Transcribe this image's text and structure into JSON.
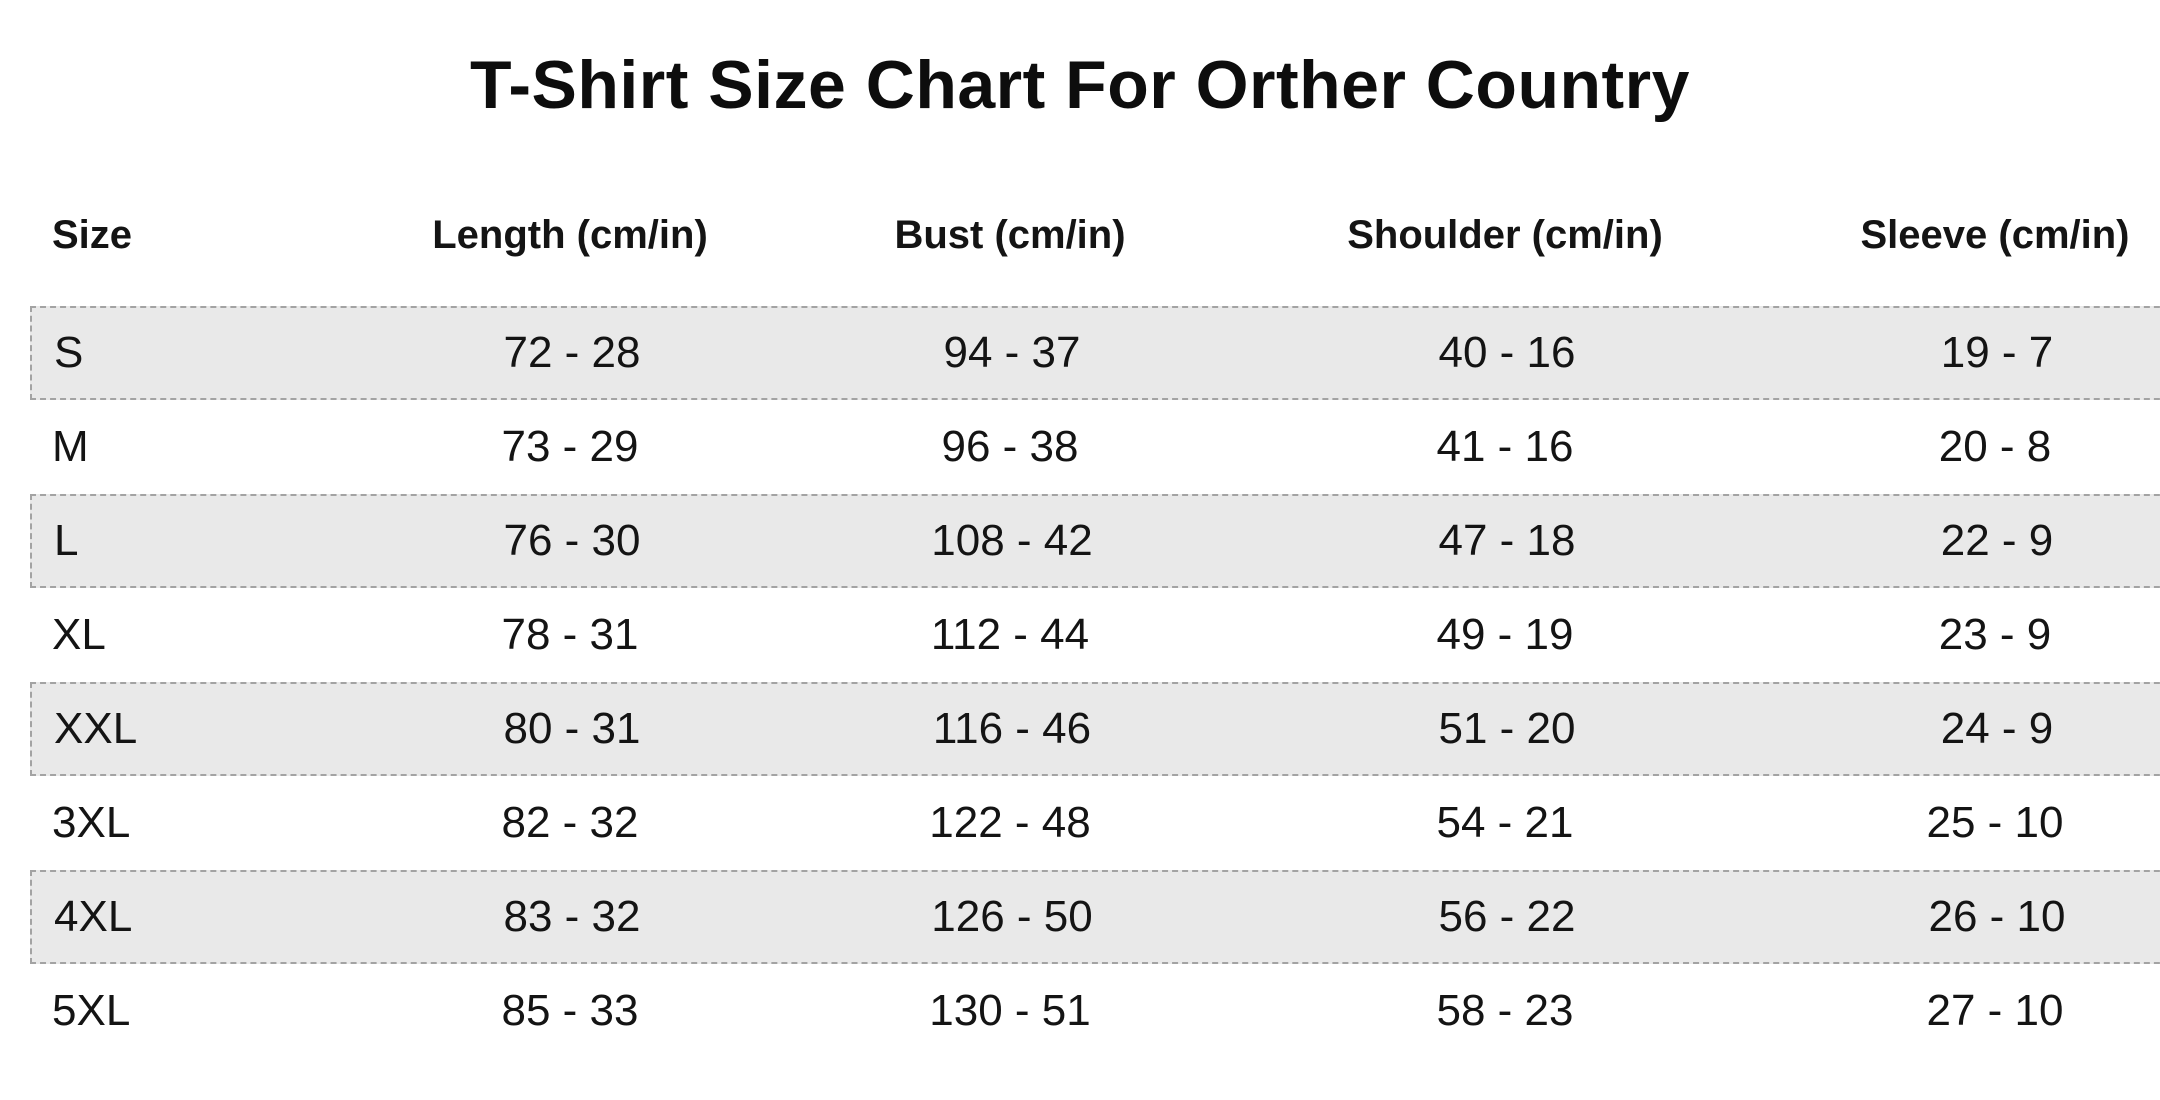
{
  "page": {
    "title": "T-Shirt Size Chart For Orther Country",
    "background": "#ffffff",
    "text_color": "#141414"
  },
  "chart_data": {
    "type": "table",
    "title": "T-Shirt Size Chart For Orther Country",
    "columns": [
      "Size",
      "Length (cm/in)",
      "Bust (cm/in)",
      "Shoulder (cm/in)",
      "Sleeve (cm/in)"
    ],
    "rows": [
      {
        "size": "S",
        "length": "72 - 28",
        "bust": "94 - 37",
        "shoulder": "40 - 16",
        "sleeve": "19 - 7"
      },
      {
        "size": "M",
        "length": "73 - 29",
        "bust": "96 - 38",
        "shoulder": "41 - 16",
        "sleeve": "20 - 8"
      },
      {
        "size": "L",
        "length": "76 - 30",
        "bust": "108 - 42",
        "shoulder": "47 - 18",
        "sleeve": "22 - 9"
      },
      {
        "size": "XL",
        "length": "78 - 31",
        "bust": "112 - 44",
        "shoulder": "49 - 19",
        "sleeve": "23 - 9"
      },
      {
        "size": "XXL",
        "length": "80 - 31",
        "bust": "116 - 46",
        "shoulder": "51 - 20",
        "sleeve": "24 - 9"
      },
      {
        "size": "3XL",
        "length": "82 - 32",
        "bust": "122 - 48",
        "shoulder": "54 - 21",
        "sleeve": "25 - 10"
      },
      {
        "size": "4XL",
        "length": "83 - 32",
        "bust": "126 - 50",
        "shoulder": "56 - 22",
        "sleeve": "26 - 10"
      },
      {
        "size": "5XL",
        "length": "85 - 33",
        "bust": "130 - 51",
        "shoulder": "58 - 23",
        "sleeve": "27 - 10"
      }
    ],
    "layout": {
      "shaded_rows": [
        "S",
        "L",
        "XXL",
        "4XL"
      ],
      "shade_color": "#e9e9e9",
      "row_border_style": "dashed",
      "row_border_color": "#a3a3a3",
      "header_position": "top",
      "units": "cm/in"
    }
  }
}
